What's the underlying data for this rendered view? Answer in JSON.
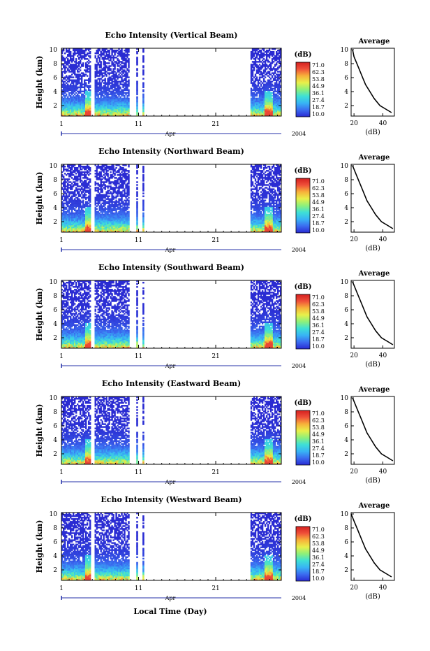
{
  "figure": {
    "xlabel": "Local Time (Day)",
    "month_label": "Apr",
    "year_label": "2004",
    "x_ticks": [
      "1",
      "11",
      "21"
    ],
    "colorbar_unit": "(dB)",
    "colorbar_ticks": [
      "71.0",
      "62.3",
      "53.8",
      "44.9",
      "36.1",
      "27.4",
      "18.7",
      "10.0"
    ],
    "average_title": "Average",
    "average_xlabel": "(dB)",
    "average_x_ticks": [
      "20",
      "40"
    ],
    "y_ticks": [
      "2",
      "4",
      "6",
      "8",
      "10"
    ],
    "ylabel": "Height (km)"
  },
  "chart_data": [
    {
      "type": "heatmap",
      "title": "Echo Intensity (Vertical Beam)",
      "ylabel": "Height (km)",
      "xlabel": "",
      "xlim": [
        1,
        29.5
      ],
      "ylim": [
        0.5,
        10.2
      ],
      "zlim": [
        10.0,
        71.0
      ],
      "data_day_ranges": [
        [
          1,
          4.8
        ],
        [
          5.3,
          9.8
        ],
        [
          10.7,
          10.9
        ],
        [
          11.5,
          11.7
        ],
        [
          25.5,
          29.5
        ]
      ],
      "average_profile": {
        "type": "line",
        "xlim": [
          18,
          48
        ],
        "ylim": [
          0.5,
          10.2
        ],
        "height_km": [
          10,
          9,
          8,
          7,
          6,
          5,
          4,
          3,
          2,
          1.5,
          1
        ],
        "intensity_db": [
          19,
          20,
          22,
          24,
          26,
          28,
          31,
          34,
          38,
          42,
          46
        ]
      }
    },
    {
      "type": "heatmap",
      "title": "Echo Intensity (Northward Beam)",
      "ylabel": "Height (km)",
      "xlabel": "",
      "xlim": [
        1,
        29.5
      ],
      "ylim": [
        0.5,
        10.2
      ],
      "zlim": [
        10.0,
        71.0
      ],
      "data_day_ranges": [
        [
          1,
          4.8
        ],
        [
          5.3,
          9.8
        ],
        [
          10.7,
          10.9
        ],
        [
          11.5,
          11.7
        ],
        [
          25.5,
          29.5
        ]
      ],
      "average_profile": {
        "type": "line",
        "xlim": [
          18,
          48
        ],
        "ylim": [
          0.5,
          10.2
        ],
        "height_km": [
          10,
          9,
          8,
          7,
          6,
          5,
          4,
          3,
          2,
          1.5,
          1
        ],
        "intensity_db": [
          19,
          21,
          23,
          25,
          27,
          29,
          32,
          35,
          39,
          43,
          47
        ]
      }
    },
    {
      "type": "heatmap",
      "title": "Echo Intensity (Southward Beam)",
      "ylabel": "Height (km)",
      "xlabel": "",
      "xlim": [
        1,
        29.5
      ],
      "ylim": [
        0.5,
        10.2
      ],
      "zlim": [
        10.0,
        71.0
      ],
      "data_day_ranges": [
        [
          1,
          4.8
        ],
        [
          5.3,
          9.8
        ],
        [
          10.7,
          10.9
        ],
        [
          11.5,
          11.7
        ],
        [
          25.5,
          29.5
        ]
      ],
      "average_profile": {
        "type": "line",
        "xlim": [
          18,
          48
        ],
        "ylim": [
          0.5,
          10.2
        ],
        "height_km": [
          10,
          9,
          8,
          7,
          6,
          5,
          4,
          3,
          2,
          1.5,
          1
        ],
        "intensity_db": [
          19,
          21,
          23,
          25,
          27,
          29,
          32,
          35,
          39,
          43,
          47
        ]
      }
    },
    {
      "type": "heatmap",
      "title": "Echo Intensity (Eastward Beam)",
      "ylabel": "Height (km)",
      "xlabel": "",
      "xlim": [
        1,
        29.5
      ],
      "ylim": [
        0.5,
        10.2
      ],
      "zlim": [
        10.0,
        71.0
      ],
      "data_day_ranges": [
        [
          1,
          4.8
        ],
        [
          5.3,
          9.8
        ],
        [
          10.7,
          10.9
        ],
        [
          11.5,
          11.7
        ],
        [
          25.5,
          29.5
        ]
      ],
      "average_profile": {
        "type": "line",
        "xlim": [
          18,
          48
        ],
        "ylim": [
          0.5,
          10.2
        ],
        "height_km": [
          10,
          9,
          8,
          7,
          6,
          5,
          4,
          3,
          2,
          1.5,
          1
        ],
        "intensity_db": [
          19,
          21,
          23,
          25,
          27,
          29,
          32,
          35,
          39,
          43,
          47
        ]
      }
    },
    {
      "type": "heatmap",
      "title": "Echo Intensity (Westward Beam)",
      "ylabel": "Height (km)",
      "xlabel": "Local Time (Day)",
      "xlim": [
        1,
        29.5
      ],
      "ylim": [
        0.5,
        10.2
      ],
      "zlim": [
        10.0,
        71.0
      ],
      "data_day_ranges": [
        [
          1,
          4.8
        ],
        [
          5.3,
          9.8
        ],
        [
          10.7,
          10.9
        ],
        [
          11.5,
          11.7
        ],
        [
          25.5,
          29.5
        ]
      ],
      "average_profile": {
        "type": "line",
        "xlim": [
          18,
          48
        ],
        "ylim": [
          0.5,
          10.2
        ],
        "height_km": [
          10,
          9,
          8,
          7,
          6,
          5,
          4,
          3,
          2,
          1.5,
          1
        ],
        "intensity_db": [
          18,
          20,
          22,
          24,
          26,
          28,
          31,
          34,
          38,
          42,
          46
        ]
      }
    }
  ],
  "colors": {
    "colormap": [
      "#2a2ad2",
      "#3b6cf0",
      "#38b4f5",
      "#3ee0d6",
      "#8ef07a",
      "#e8f04a",
      "#f7b23a",
      "#f0503a",
      "#d41f1f"
    ],
    "axis": "#000000",
    "time_axis": "#2430a8"
  }
}
